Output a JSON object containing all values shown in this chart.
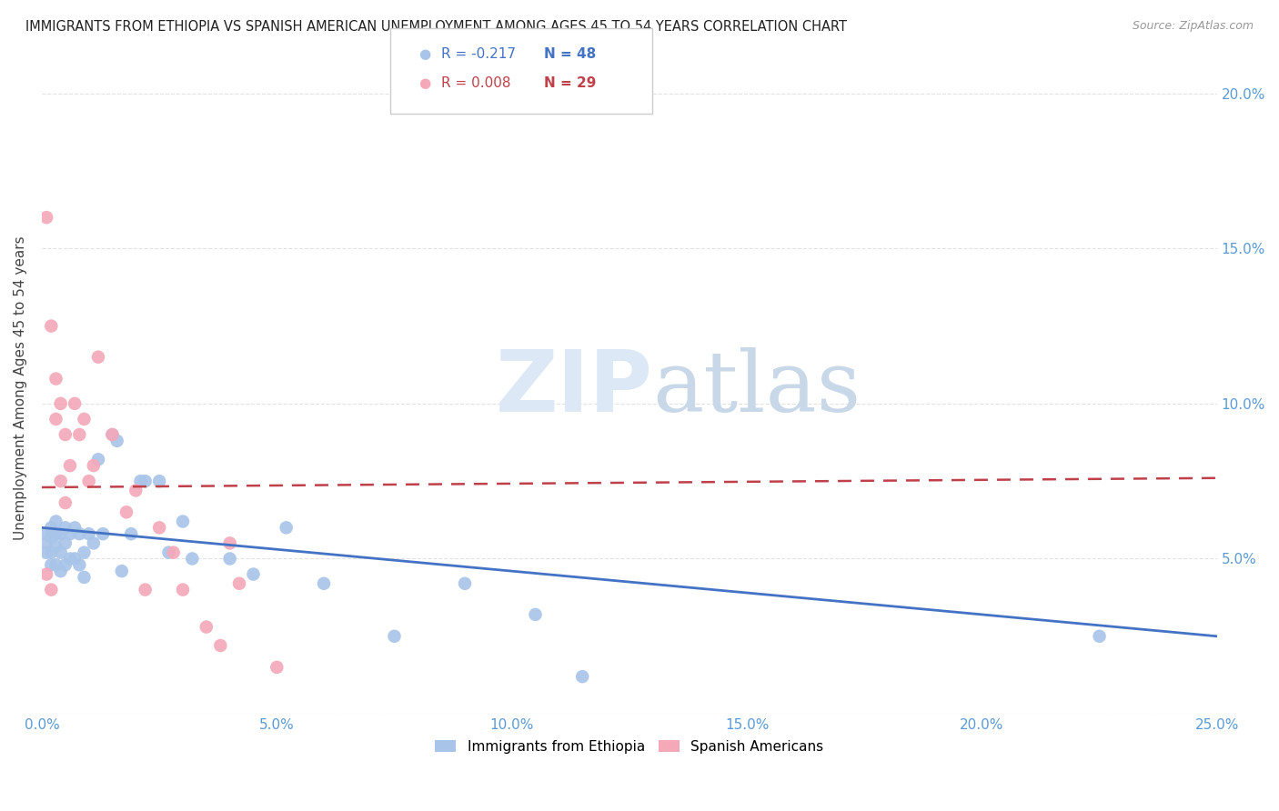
{
  "title": "IMMIGRANTS FROM ETHIOPIA VS SPANISH AMERICAN UNEMPLOYMENT AMONG AGES 45 TO 54 YEARS CORRELATION CHART",
  "source": "Source: ZipAtlas.com",
  "ylabel": "Unemployment Among Ages 45 to 54 years",
  "xlim": [
    0.0,
    0.25
  ],
  "ylim": [
    0.0,
    0.21
  ],
  "xticks": [
    0.0,
    0.05,
    0.1,
    0.15,
    0.2,
    0.25
  ],
  "yticks": [
    0.0,
    0.05,
    0.1,
    0.15,
    0.2
  ],
  "xticklabels": [
    "0.0%",
    "5.0%",
    "10.0%",
    "15.0%",
    "20.0%",
    "25.0%"
  ],
  "yticklabels": [
    "",
    "5.0%",
    "10.0%",
    "15.0%",
    "20.0%"
  ],
  "blue_label": "Immigrants from Ethiopia",
  "pink_label": "Spanish Americans",
  "blue_R": "R = -0.217",
  "blue_N": "N = 48",
  "pink_R": "R = 0.008",
  "pink_N": "N = 29",
  "watermark_zip": "ZIP",
  "watermark_atlas": "atlas",
  "blue_color": "#a8c4e8",
  "pink_color": "#f4a8b8",
  "blue_line_color": "#4472c4",
  "pink_line_color": "#c0404a",
  "tick_color": "#5b9bd5",
  "background_color": "#ffffff",
  "grid_color": "#e0e0e0",
  "blue_scatter_x": [
    0.001,
    0.001,
    0.001,
    0.002,
    0.002,
    0.002,
    0.002,
    0.003,
    0.003,
    0.003,
    0.003,
    0.004,
    0.004,
    0.004,
    0.005,
    0.005,
    0.005,
    0.006,
    0.006,
    0.007,
    0.007,
    0.008,
    0.008,
    0.009,
    0.009,
    0.01,
    0.011,
    0.012,
    0.013,
    0.015,
    0.016,
    0.017,
    0.019,
    0.021,
    0.022,
    0.025,
    0.027,
    0.03,
    0.032,
    0.04,
    0.045,
    0.052,
    0.06,
    0.075,
    0.09,
    0.105,
    0.115,
    0.225
  ],
  "blue_scatter_y": [
    0.058,
    0.055,
    0.052,
    0.06,
    0.057,
    0.052,
    0.048,
    0.062,
    0.058,
    0.054,
    0.048,
    0.058,
    0.052,
    0.046,
    0.06,
    0.055,
    0.048,
    0.058,
    0.05,
    0.06,
    0.05,
    0.058,
    0.048,
    0.052,
    0.044,
    0.058,
    0.055,
    0.082,
    0.058,
    0.09,
    0.088,
    0.046,
    0.058,
    0.075,
    0.075,
    0.075,
    0.052,
    0.062,
    0.05,
    0.05,
    0.045,
    0.06,
    0.042,
    0.025,
    0.042,
    0.032,
    0.012,
    0.025
  ],
  "pink_scatter_x": [
    0.001,
    0.001,
    0.002,
    0.002,
    0.003,
    0.003,
    0.004,
    0.004,
    0.005,
    0.005,
    0.006,
    0.007,
    0.008,
    0.009,
    0.01,
    0.011,
    0.012,
    0.015,
    0.018,
    0.02,
    0.022,
    0.025,
    0.028,
    0.03,
    0.035,
    0.038,
    0.04,
    0.042,
    0.05
  ],
  "pink_scatter_y": [
    0.16,
    0.045,
    0.125,
    0.04,
    0.108,
    0.095,
    0.1,
    0.075,
    0.09,
    0.068,
    0.08,
    0.1,
    0.09,
    0.095,
    0.075,
    0.08,
    0.115,
    0.09,
    0.065,
    0.072,
    0.04,
    0.06,
    0.052,
    0.04,
    0.028,
    0.022,
    0.055,
    0.042,
    0.015
  ],
  "blue_trendline_x": [
    0.0,
    0.25
  ],
  "blue_trendline_y": [
    0.06,
    0.025
  ],
  "pink_trendline_x": [
    0.0,
    0.25
  ],
  "pink_trendline_y": [
    0.073,
    0.076
  ]
}
